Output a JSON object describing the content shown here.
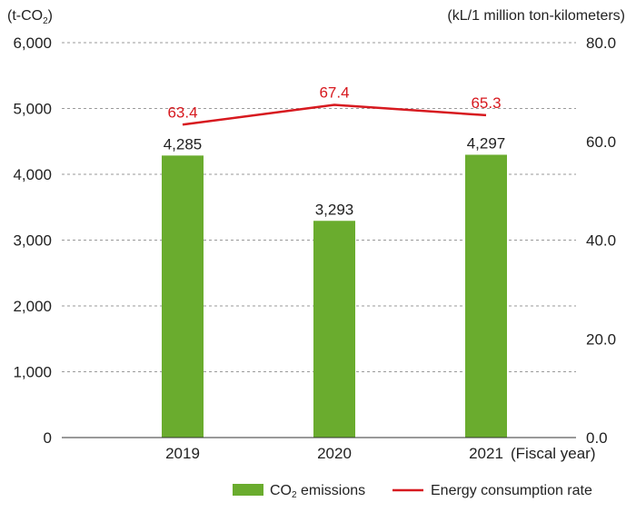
{
  "chart_data": {
    "type": "bar",
    "categories": [
      "2019",
      "2020",
      "2021"
    ],
    "x_suffix": "(Fiscal year)",
    "left_axis": {
      "unit_main": "(t-CO",
      "unit_sub": "2",
      "unit_close": ")",
      "ylim": [
        0,
        6000
      ],
      "ticks": [
        0,
        1000,
        2000,
        3000,
        4000,
        5000,
        6000
      ],
      "tick_labels": [
        "0",
        "1,000",
        "2,000",
        "3,000",
        "4,000",
        "5,000",
        "6,000"
      ]
    },
    "right_axis": {
      "unit": "(kL/1 million ton-kilometers)",
      "ylim": [
        0,
        80
      ],
      "ticks": [
        0,
        20,
        40,
        60,
        80
      ],
      "tick_labels": [
        "0.0",
        "20.0",
        "40.0",
        "60.0",
        "80.0"
      ]
    },
    "series": [
      {
        "name_main": "CO",
        "name_sub": "2",
        "name_rest": " emissions",
        "kind": "bar",
        "axis": "left",
        "color": "#6aac2e",
        "values": [
          4285,
          3293,
          4297
        ],
        "labels": [
          "4,285",
          "3,293",
          "4,297"
        ]
      },
      {
        "name": "Energy consumption rate",
        "kind": "line",
        "axis": "right",
        "color": "#d7191f",
        "values": [
          63.4,
          67.4,
          65.3
        ],
        "labels": [
          "63.4",
          "67.4",
          "65.3"
        ]
      }
    ],
    "grid": true,
    "legend_position": "bottom-right"
  }
}
